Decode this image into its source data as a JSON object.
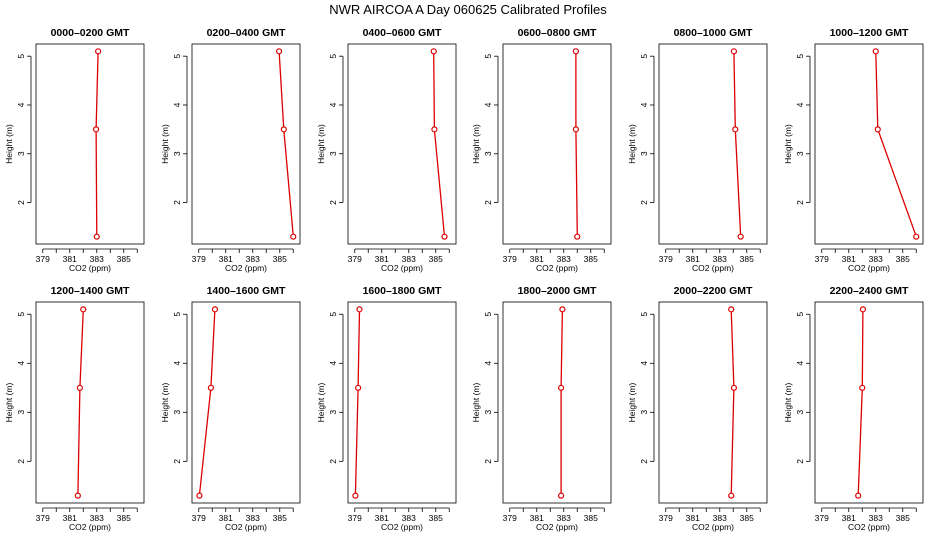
{
  "title": "NWR AIRCOA A  Day 060625  Calibrated Profiles",
  "chart_data": {
    "type": "line",
    "layout": "small-multiples-2x6",
    "xlabel": "CO2 (ppm)",
    "ylabel": "Height (m)",
    "xlim": [
      378.5,
      386.5
    ],
    "ylim": [
      1.15,
      5.25
    ],
    "xticks": [
      379,
      380,
      381,
      382,
      383,
      384,
      385,
      386
    ],
    "xtick_labels": [
      "379",
      "",
      "381",
      "",
      "383",
      "",
      "385",
      ""
    ],
    "yticks": [
      2,
      3,
      4,
      5
    ],
    "ytick_labels": [
      "2",
      "3",
      "4",
      "5"
    ],
    "heights": [
      1.3,
      3.5,
      5.1
    ],
    "panels": [
      {
        "title": "0000–0200 GMT",
        "co2": [
          383.0,
          382.95,
          383.1
        ]
      },
      {
        "title": "0200–0400 GMT",
        "co2": [
          386.0,
          385.3,
          384.95
        ]
      },
      {
        "title": "0400–0600 GMT",
        "co2": [
          385.65,
          384.9,
          384.85
        ]
      },
      {
        "title": "0600–0800 GMT",
        "co2": [
          384.0,
          383.9,
          383.9
        ]
      },
      {
        "title": "0800–1000 GMT",
        "co2": [
          384.55,
          384.15,
          384.05
        ]
      },
      {
        "title": "1000–1200 GMT",
        "co2": [
          386.0,
          383.15,
          383.0
        ]
      },
      {
        "title": "1200–1400 GMT",
        "co2": [
          381.6,
          381.75,
          382.0
        ]
      },
      {
        "title": "1400–1600 GMT",
        "co2": [
          379.05,
          379.9,
          380.2
        ]
      },
      {
        "title": "1600–1800 GMT",
        "co2": [
          379.05,
          379.25,
          379.35
        ]
      },
      {
        "title": "1800–2000 GMT",
        "co2": [
          382.8,
          382.8,
          382.9
        ]
      },
      {
        "title": "2000–2200 GMT",
        "co2": [
          383.85,
          384.05,
          383.85
        ]
      },
      {
        "title": "2200–2400 GMT",
        "co2": [
          381.7,
          382.0,
          382.05
        ]
      }
    ]
  }
}
